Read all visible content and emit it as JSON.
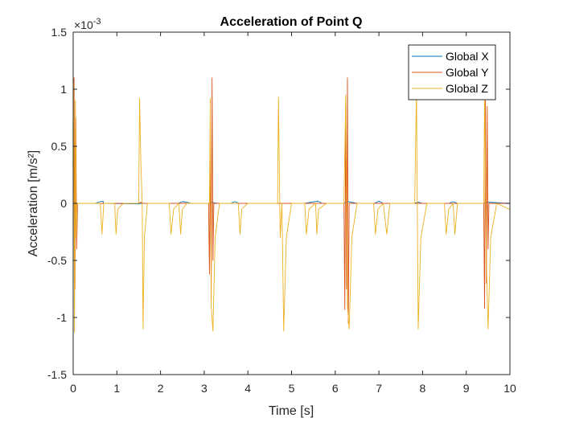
{
  "chart_data": {
    "type": "line",
    "title": "Acceleration of Point Q",
    "xlabel": "Time [s]",
    "ylabel": "Acceleration [m/s²]",
    "y_multiplier_label": "×10",
    "y_multiplier_exponent": "-3",
    "xlim": [
      0,
      10
    ],
    "ylim": [
      -1.5,
      1.5
    ],
    "x_ticks": [
      0,
      1,
      2,
      3,
      4,
      5,
      6,
      7,
      8,
      9,
      10
    ],
    "y_ticks": [
      -1.5,
      -1,
      -0.5,
      0,
      0.5,
      1,
      1.5
    ],
    "x_tick_labels": [
      "0",
      "1",
      "2",
      "3",
      "4",
      "5",
      "6",
      "7",
      "8",
      "9",
      "10"
    ],
    "y_tick_labels": [
      "-1.5",
      "-1",
      "-0.5",
      "0",
      "0.5",
      "1",
      "1.5"
    ],
    "grid": false,
    "legend_position": "top-right",
    "series": [
      {
        "name": "Global X",
        "color": "#0072bd",
        "points": [
          [
            0,
            0
          ],
          [
            0.5,
            0
          ],
          [
            0.62,
            0.015
          ],
          [
            0.68,
            0.02
          ],
          [
            0.7,
            0
          ],
          [
            1.5,
            -0.005
          ],
          [
            1.55,
            0
          ],
          [
            2.4,
            0
          ],
          [
            2.5,
            0.015
          ],
          [
            2.6,
            0.01
          ],
          [
            2.7,
            0
          ],
          [
            3.1,
            0
          ],
          [
            3.15,
            0.01
          ],
          [
            3.3,
            0
          ],
          [
            3.6,
            0
          ],
          [
            3.7,
            0.015
          ],
          [
            3.8,
            0
          ],
          [
            5.3,
            0
          ],
          [
            5.6,
            0.02
          ],
          [
            5.7,
            0
          ],
          [
            6.2,
            0
          ],
          [
            6.3,
            0.015
          ],
          [
            6.5,
            0
          ],
          [
            6.9,
            0
          ],
          [
            7.0,
            0.02
          ],
          [
            7.1,
            0
          ],
          [
            7.8,
            0
          ],
          [
            7.9,
            0.01
          ],
          [
            8.0,
            0
          ],
          [
            8.6,
            0
          ],
          [
            8.7,
            0.015
          ],
          [
            8.8,
            0
          ],
          [
            9.4,
            0
          ],
          [
            9.5,
            0.01
          ],
          [
            10,
            0
          ]
        ]
      },
      {
        "name": "Global Y",
        "color": "#d95319",
        "points": [
          [
            0,
            0
          ],
          [
            0.02,
            1.1
          ],
          [
            0.04,
            -0.75
          ],
          [
            0.06,
            0.75
          ],
          [
            0.08,
            -0.4
          ],
          [
            0.1,
            0
          ],
          [
            1.5,
            0
          ],
          [
            1.55,
            0.01
          ],
          [
            1.6,
            0
          ],
          [
            3.1,
            0
          ],
          [
            3.12,
            -0.62
          ],
          [
            3.14,
            0.5
          ],
          [
            3.16,
            -0.85
          ],
          [
            3.18,
            1.1
          ],
          [
            3.2,
            -0.5
          ],
          [
            3.22,
            0
          ],
          [
            6.2,
            0
          ],
          [
            6.22,
            -0.93
          ],
          [
            6.24,
            0.85
          ],
          [
            6.26,
            -0.75
          ],
          [
            6.28,
            1.1
          ],
          [
            6.3,
            -1.05
          ],
          [
            6.32,
            0
          ],
          [
            9.4,
            0
          ],
          [
            9.42,
            -0.92
          ],
          [
            9.44,
            0.9
          ],
          [
            9.46,
            -0.7
          ],
          [
            9.48,
            0.85
          ],
          [
            9.5,
            -0.4
          ],
          [
            9.52,
            0
          ],
          [
            10,
            0
          ]
        ]
      },
      {
        "name": "Global Z",
        "color": "#edb120",
        "points": [
          [
            0,
            0
          ],
          [
            0.01,
            1.05
          ],
          [
            0.03,
            -1.13
          ],
          [
            0.05,
            0.9
          ],
          [
            0.07,
            -0.3
          ],
          [
            0.09,
            0
          ],
          [
            0.62,
            0
          ],
          [
            0.66,
            -0.27
          ],
          [
            0.7,
            0
          ],
          [
            0.95,
            0
          ],
          [
            0.98,
            -0.27
          ],
          [
            1.02,
            -0.05
          ],
          [
            1.15,
            0
          ],
          [
            1.5,
            0
          ],
          [
            1.52,
            0.92
          ],
          [
            1.55,
            0.35
          ],
          [
            1.58,
            0
          ],
          [
            1.6,
            -1.1
          ],
          [
            1.63,
            -0.3
          ],
          [
            1.7,
            0
          ],
          [
            2.2,
            0
          ],
          [
            2.24,
            -0.27
          ],
          [
            2.3,
            -0.05
          ],
          [
            2.42,
            0
          ],
          [
            2.46,
            -0.27
          ],
          [
            2.5,
            -0.05
          ],
          [
            2.6,
            0
          ],
          [
            3.12,
            0
          ],
          [
            3.14,
            0.92
          ],
          [
            3.16,
            -0.9
          ],
          [
            3.2,
            -1.12
          ],
          [
            3.25,
            -0.3
          ],
          [
            3.35,
            0
          ],
          [
            3.78,
            0
          ],
          [
            3.82,
            -0.27
          ],
          [
            3.86,
            -0.05
          ],
          [
            4.0,
            0
          ],
          [
            4.68,
            0
          ],
          [
            4.7,
            0.93
          ],
          [
            4.74,
            -0.3
          ],
          [
            4.78,
            0
          ],
          [
            4.82,
            -1.12
          ],
          [
            4.88,
            -0.3
          ],
          [
            5.0,
            0
          ],
          [
            5.3,
            0
          ],
          [
            5.34,
            -0.27
          ],
          [
            5.4,
            -0.05
          ],
          [
            5.55,
            0
          ],
          [
            5.58,
            -0.27
          ],
          [
            5.62,
            -0.05
          ],
          [
            5.8,
            0
          ],
          [
            6.2,
            0
          ],
          [
            6.24,
            0.95
          ],
          [
            6.28,
            -0.9
          ],
          [
            6.32,
            -1.1
          ],
          [
            6.38,
            -0.3
          ],
          [
            6.5,
            0
          ],
          [
            6.88,
            0
          ],
          [
            6.92,
            -0.27
          ],
          [
            6.98,
            -0.05
          ],
          [
            7.1,
            0
          ],
          [
            7.18,
            -0.27
          ],
          [
            7.25,
            0
          ],
          [
            7.82,
            0
          ],
          [
            7.86,
            1.0
          ],
          [
            7.9,
            -1.1
          ],
          [
            7.96,
            -0.3
          ],
          [
            8.1,
            0
          ],
          [
            8.5,
            0
          ],
          [
            8.54,
            -0.27
          ],
          [
            8.6,
            -0.05
          ],
          [
            8.7,
            0
          ],
          [
            8.74,
            -0.27
          ],
          [
            8.8,
            0
          ],
          [
            9.4,
            0
          ],
          [
            9.42,
            0.93
          ],
          [
            9.46,
            -0.5
          ],
          [
            9.5,
            -1.1
          ],
          [
            9.56,
            -0.3
          ],
          [
            9.7,
            0
          ],
          [
            9.98,
            -0.05
          ],
          [
            10,
            -0.05
          ]
        ]
      }
    ]
  }
}
